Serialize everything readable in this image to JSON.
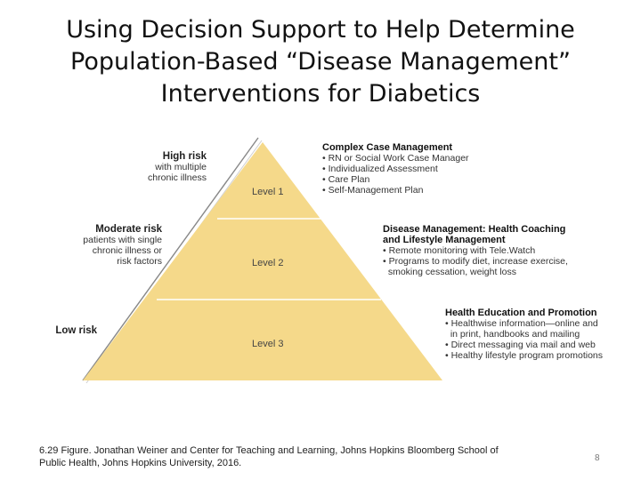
{
  "title": {
    "line1": "Using Decision Support to Help Determine",
    "line2": "Population-Based “Disease Management”",
    "line3": "Interventions for Diabetics"
  },
  "diagram": {
    "fill_color": "#f5d98a",
    "risk_labels": [
      {
        "heading": "High risk",
        "lines": [
          "with multiple",
          "chronic illness"
        ]
      },
      {
        "heading": "Moderate risk",
        "lines": [
          "patients with single",
          "chronic illness or",
          "risk factors"
        ]
      },
      {
        "heading": "Low risk",
        "lines": []
      }
    ],
    "levels": [
      "Level 1",
      "Level 2",
      "Level 3"
    ],
    "interventions": [
      {
        "heading": "Complex Case Management",
        "items": [
          "• RN or Social Work Case Manager",
          "• Individualized Assessment",
          "• Care Plan",
          "• Self-Management Plan"
        ]
      },
      {
        "heading": "Disease Management: Health Coaching",
        "heading2": "and Lifestyle Management",
        "items": [
          "• Remote monitoring with Tele.Watch",
          "• Programs to modify diet, increase exercise,",
          "  smoking cessation, weight loss"
        ]
      },
      {
        "heading": "Health Education and Promotion",
        "items": [
          "• Healthwise information—online and",
          "  in print, handbooks and mailing",
          "• Direct messaging via mail and web",
          "• Healthy lifestyle program promotions"
        ]
      }
    ]
  },
  "caption": {
    "line1": "6.29 Figure. Jonathan Weiner and Center for Teaching and Learning, Johns Hopkins Bloomberg School of",
    "line2": "Public Health, Johns Hopkins University, 2016."
  },
  "page_number": "8"
}
